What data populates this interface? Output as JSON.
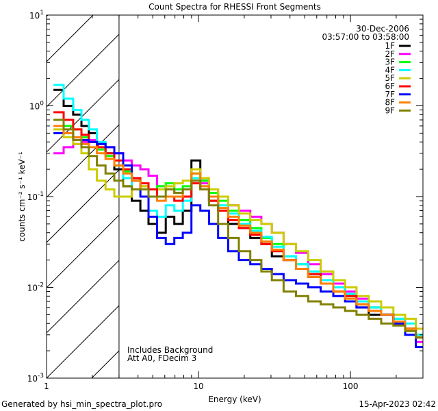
{
  "chart_data": {
    "type": "line",
    "title": "Count Spectra for RHESSI Front Segments",
    "xlabel": "Energy (keV)",
    "ylabel": "counts cm⁻² s⁻¹ keV⁻¹",
    "xscale": "log",
    "yscale": "log",
    "xlim": [
      1,
      300
    ],
    "ylim": [
      0.001,
      10
    ],
    "xticks": [
      1,
      10,
      100
    ],
    "xtick_labels": [
      "1",
      "10",
      "100"
    ],
    "yticks": [
      0.001,
      0.01,
      0.1,
      1,
      10
    ],
    "ytick_exponents": [
      "-3",
      "-2",
      "-1",
      "0",
      "1"
    ],
    "ytick_base": "10",
    "shaded_region_max_energy": 3,
    "date": "30-Dec-2006",
    "time_range": "03:57:00 to 03:58:00",
    "annotations": [
      "Includes Background",
      "Att A0, FDecim 3"
    ],
    "legend_position": "top-right",
    "energies": [
      1.2,
      1.4,
      1.6,
      1.8,
      2.0,
      2.3,
      2.6,
      3.0,
      3.4,
      3.9,
      4.4,
      5.0,
      5.7,
      6.5,
      7.4,
      8.4,
      9.6,
      11,
      12.5,
      14.5,
      17,
      20,
      24,
      28,
      33,
      40,
      48,
      58,
      70,
      85,
      100,
      120,
      145,
      175,
      210,
      250,
      290
    ],
    "series": [
      {
        "name": "1F",
        "color": "#000000",
        "values": [
          1.5,
          1.0,
          0.8,
          0.6,
          0.5,
          0.38,
          0.3,
          0.2,
          0.13,
          0.09,
          0.07,
          0.05,
          0.04,
          0.06,
          0.05,
          0.07,
          0.25,
          0.15,
          0.09,
          0.07,
          0.05,
          0.045,
          0.035,
          0.03,
          0.022,
          0.02,
          0.016,
          0.013,
          0.011,
          0.009,
          0.008,
          0.006,
          0.005,
          0.005,
          0.004,
          0.0035,
          0.003
        ]
      },
      {
        "name": "2F",
        "color": "#ff00ff",
        "values": [
          0.3,
          0.35,
          0.38,
          0.4,
          0.42,
          0.38,
          0.35,
          0.3,
          0.25,
          0.22,
          0.2,
          0.17,
          0.13,
          0.12,
          0.11,
          0.12,
          0.15,
          0.14,
          0.12,
          0.1,
          0.08,
          0.07,
          0.06,
          0.05,
          0.04,
          0.03,
          0.024,
          0.018,
          0.014,
          0.011,
          0.009,
          0.0075,
          0.006,
          0.005,
          0.004,
          0.0035,
          0.0025
        ]
      },
      {
        "name": "3F",
        "color": "#00ff00",
        "values": [
          0.7,
          0.6,
          0.55,
          0.45,
          0.4,
          0.33,
          0.28,
          0.22,
          0.19,
          0.15,
          0.13,
          0.12,
          0.13,
          0.14,
          0.12,
          0.13,
          0.18,
          0.15,
          0.11,
          0.09,
          0.07,
          0.055,
          0.045,
          0.035,
          0.03,
          0.022,
          0.018,
          0.014,
          0.012,
          0.01,
          0.008,
          0.007,
          0.006,
          0.005,
          0.0045,
          0.0035,
          0.003
        ]
      },
      {
        "name": "4F",
        "color": "#00ffff",
        "values": [
          1.7,
          1.2,
          0.9,
          0.7,
          0.55,
          0.4,
          0.3,
          0.22,
          0.16,
          0.12,
          0.1,
          0.07,
          0.06,
          0.08,
          0.07,
          0.09,
          0.16,
          0.13,
          0.1,
          0.08,
          0.065,
          0.05,
          0.042,
          0.036,
          0.028,
          0.022,
          0.018,
          0.015,
          0.012,
          0.01,
          0.0085,
          0.007,
          0.006,
          0.005,
          0.0045,
          0.004,
          0.003
        ]
      },
      {
        "name": "5F",
        "color": "#cccc00",
        "values": [
          0.55,
          0.45,
          0.38,
          0.3,
          0.2,
          0.15,
          0.12,
          0.1,
          0.1,
          0.12,
          0.13,
          0.12,
          0.12,
          0.13,
          0.14,
          0.15,
          0.2,
          0.16,
          0.12,
          0.1,
          0.08,
          0.065,
          0.055,
          0.05,
          0.04,
          0.03,
          0.025,
          0.02,
          0.015,
          0.012,
          0.01,
          0.008,
          0.007,
          0.006,
          0.005,
          0.0045,
          0.0035
        ]
      },
      {
        "name": "6F",
        "color": "#ff0000",
        "values": [
          0.85,
          0.7,
          0.55,
          0.48,
          0.4,
          0.35,
          0.3,
          0.25,
          0.2,
          0.16,
          0.14,
          0.12,
          0.1,
          0.1,
          0.09,
          0.1,
          0.14,
          0.12,
          0.09,
          0.07,
          0.055,
          0.045,
          0.038,
          0.03,
          0.025,
          0.02,
          0.016,
          0.014,
          0.011,
          0.009,
          0.008,
          0.0065,
          0.0055,
          0.005,
          0.004,
          0.0035,
          0.0028
        ]
      },
      {
        "name": "7F",
        "color": "#0000ff",
        "values": [
          0.5,
          0.5,
          0.45,
          0.42,
          0.4,
          0.38,
          0.35,
          0.3,
          0.22,
          0.15,
          0.1,
          0.06,
          0.035,
          0.03,
          0.035,
          0.04,
          0.08,
          0.07,
          0.05,
          0.035,
          0.025,
          0.02,
          0.018,
          0.016,
          0.014,
          0.012,
          0.011,
          0.01,
          0.009,
          0.008,
          0.007,
          0.006,
          0.0055,
          0.005,
          0.004,
          0.003,
          0.0022
        ]
      },
      {
        "name": "8F",
        "color": "#ff8000",
        "values": [
          0.6,
          0.5,
          0.45,
          0.38,
          0.35,
          0.3,
          0.26,
          0.22,
          0.18,
          0.15,
          0.12,
          0.1,
          0.09,
          0.1,
          0.1,
          0.12,
          0.18,
          0.13,
          0.1,
          0.075,
          0.06,
          0.048,
          0.04,
          0.032,
          0.026,
          0.02,
          0.016,
          0.013,
          0.011,
          0.009,
          0.0075,
          0.0065,
          0.0055,
          0.005,
          0.0042,
          0.0035,
          0.0028
        ]
      },
      {
        "name": "9F",
        "color": "#808000",
        "values": [
          0.7,
          0.55,
          0.42,
          0.35,
          0.28,
          0.22,
          0.18,
          0.15,
          0.13,
          0.12,
          0.12,
          0.1,
          0.1,
          0.12,
          0.11,
          0.12,
          0.15,
          0.12,
          0.08,
          0.05,
          0.035,
          0.025,
          0.02,
          0.015,
          0.012,
          0.009,
          0.008,
          0.007,
          0.0065,
          0.006,
          0.0055,
          0.005,
          0.0045,
          0.004,
          0.0038,
          0.0033,
          0.0028
        ]
      }
    ]
  },
  "footer": {
    "generated_by": "Generated by hsi_min_spectra_plot.pro",
    "timestamp": "15-Apr-2023 02:42"
  }
}
